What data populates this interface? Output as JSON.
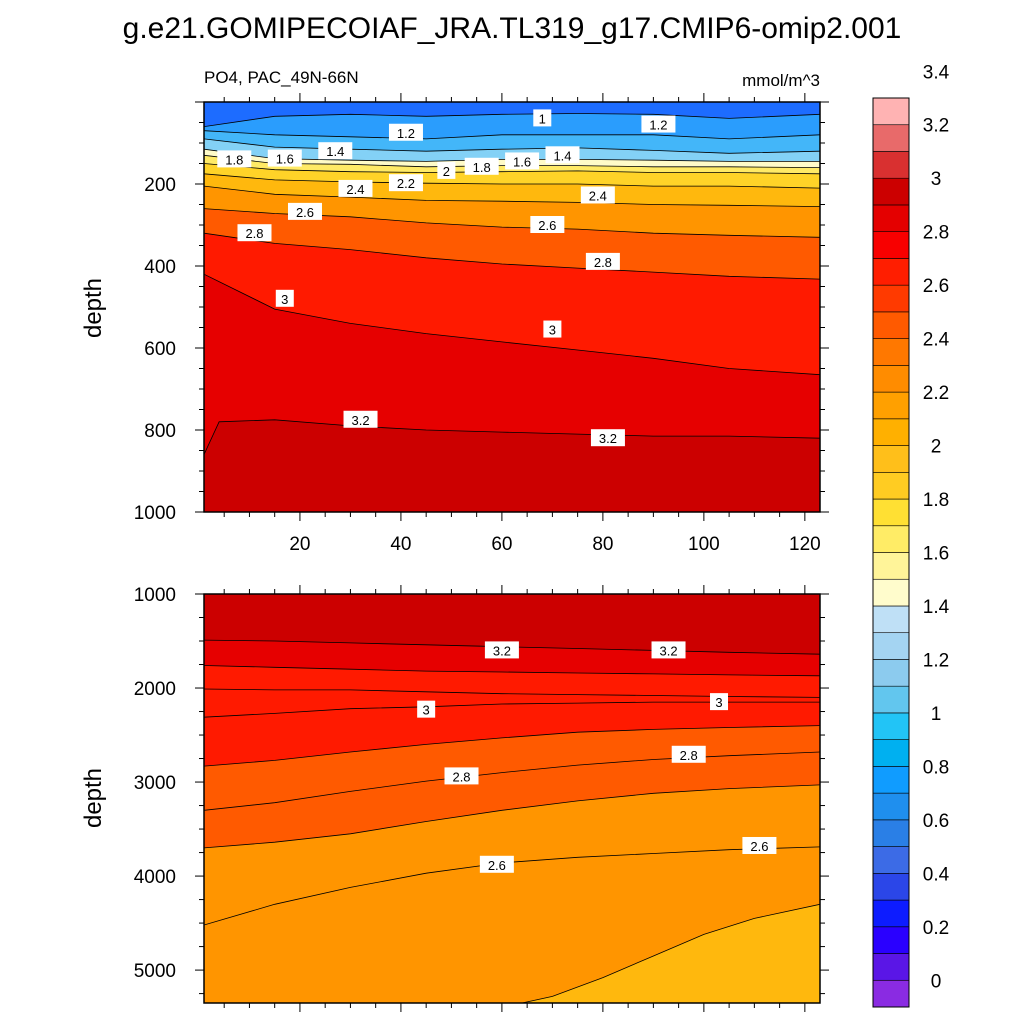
{
  "figure": {
    "title": "g.e21.GOMIPECOIAF_JRA.TL319_g17.CMIP6-omip2.001",
    "subtitle_left": "PO4, PAC_49N-66N",
    "subtitle_right": "mmol/m^3"
  },
  "chart_data": [
    {
      "type": "heatmap",
      "panel": "upper",
      "ylabel": "depth",
      "xlim": [
        1,
        123
      ],
      "ylim": [
        1000,
        0
      ],
      "x_ticks": [
        "20",
        "40",
        "60",
        "80",
        "100",
        "120"
      ],
      "y_ticks": [
        "200",
        "400",
        "600",
        "800",
        "1000"
      ],
      "contour_step": 0.2,
      "contour_lines": [
        {
          "level": 1.0,
          "x": [
            1,
            15,
            30,
            45,
            60,
            75,
            90,
            105,
            123
          ],
          "depth": [
            60,
            35,
            30,
            35,
            30,
            28,
            30,
            40,
            30
          ]
        },
        {
          "level": 1.2,
          "x": [
            1,
            15,
            30,
            45,
            60,
            75,
            90,
            105,
            123
          ],
          "depth": [
            70,
            80,
            85,
            90,
            80,
            80,
            80,
            90,
            80
          ]
        },
        {
          "level": 1.4,
          "x": [
            1,
            15,
            30,
            45,
            60,
            75,
            90,
            105,
            123
          ],
          "depth": [
            90,
            110,
            115,
            120,
            115,
            112,
            118,
            125,
            120
          ]
        },
        {
          "level": 1.6,
          "x": [
            1,
            15,
            30,
            45,
            60,
            75,
            90,
            105,
            123
          ],
          "depth": [
            115,
            138,
            142,
            145,
            140,
            140,
            142,
            145,
            145
          ]
        },
        {
          "level": 1.8,
          "x": [
            1,
            15,
            30,
            45,
            60,
            75,
            90,
            105,
            123
          ],
          "depth": [
            130,
            150,
            152,
            158,
            155,
            155,
            158,
            158,
            160
          ]
        },
        {
          "level": 2.0,
          "x": [
            1,
            15,
            30,
            45,
            60,
            75,
            90,
            105,
            123
          ],
          "depth": [
            150,
            165,
            170,
            172,
            170,
            168,
            172,
            172,
            175
          ]
        },
        {
          "level": 2.2,
          "x": [
            1,
            15,
            30,
            45,
            60,
            75,
            90,
            105,
            123
          ],
          "depth": [
            175,
            190,
            195,
            198,
            200,
            200,
            205,
            205,
            210
          ]
        },
        {
          "level": 2.4,
          "x": [
            1,
            15,
            30,
            45,
            60,
            75,
            90,
            105,
            123
          ],
          "depth": [
            205,
            225,
            232,
            240,
            242,
            245,
            250,
            252,
            255
          ]
        },
        {
          "level": 2.6,
          "x": [
            1,
            15,
            30,
            45,
            60,
            75,
            90,
            105,
            123
          ],
          "depth": [
            260,
            272,
            280,
            295,
            305,
            310,
            320,
            325,
            330
          ]
        },
        {
          "level": 2.8,
          "x": [
            1,
            15,
            30,
            45,
            60,
            75,
            90,
            105,
            123
          ],
          "depth": [
            320,
            345,
            360,
            380,
            395,
            405,
            415,
            425,
            432
          ]
        },
        {
          "level": 3.0,
          "x": [
            1,
            15,
            30,
            45,
            60,
            75,
            90,
            105,
            123
          ],
          "depth": [
            420,
            505,
            540,
            565,
            585,
            605,
            625,
            650,
            665
          ]
        },
        {
          "level": 3.2,
          "x": [
            1,
            4,
            15,
            30,
            45,
            60,
            75,
            90,
            105,
            123
          ],
          "depth": [
            860,
            780,
            775,
            790,
            800,
            805,
            810,
            815,
            815,
            820
          ]
        }
      ],
      "contour_labels": [
        {
          "text": "1",
          "x": 68,
          "depth": 40
        },
        {
          "text": "1.2",
          "x": 41,
          "depth": 75
        },
        {
          "text": "1.2",
          "x": 91,
          "depth": 55
        },
        {
          "text": "1.4",
          "x": 27,
          "depth": 120
        },
        {
          "text": "1.4",
          "x": 72,
          "depth": 130
        },
        {
          "text": "1.6",
          "x": 17,
          "depth": 138
        },
        {
          "text": "1.6",
          "x": 64,
          "depth": 145
        },
        {
          "text": "1.8",
          "x": 7,
          "depth": 140
        },
        {
          "text": "1.8",
          "x": 56,
          "depth": 158
        },
        {
          "text": "2",
          "x": 49,
          "depth": 168
        },
        {
          "text": "2.2",
          "x": 41,
          "depth": 198
        },
        {
          "text": "2.4",
          "x": 31,
          "depth": 212
        },
        {
          "text": "2.4",
          "x": 79,
          "depth": 228
        },
        {
          "text": "2.6",
          "x": 21,
          "depth": 268
        },
        {
          "text": "2.6",
          "x": 69,
          "depth": 300
        },
        {
          "text": "2.8",
          "x": 11,
          "depth": 320
        },
        {
          "text": "2.8",
          "x": 80,
          "depth": 390
        },
        {
          "text": "3",
          "x": 17,
          "depth": 480
        },
        {
          "text": "3",
          "x": 70,
          "depth": 555
        },
        {
          "text": "3.2",
          "x": 32,
          "depth": 775
        },
        {
          "text": "3.2",
          "x": 81,
          "depth": 820
        }
      ]
    },
    {
      "type": "heatmap",
      "panel": "lower",
      "ylabel": "depth",
      "xlim": [
        1,
        123
      ],
      "ylim": [
        5350,
        1000
      ],
      "x_ticks": [],
      "y_ticks": [
        "1000",
        "2000",
        "3000",
        "4000",
        "5000"
      ],
      "contour_step": 0.2,
      "contour_lines": [
        {
          "level": 3.2,
          "x": [
            1,
            15,
            30,
            45,
            60,
            75,
            90,
            105,
            123
          ],
          "depth": [
            1490,
            1500,
            1520,
            1540,
            1560,
            1580,
            1600,
            1620,
            1640
          ]
        },
        {
          "level": 3.0,
          "x": [
            1,
            15,
            30,
            45,
            60,
            75,
            90,
            105,
            123
          ],
          "depth": [
            1760,
            1780,
            1800,
            1820,
            1830,
            1840,
            1850,
            1860,
            1870
          ]
        },
        {
          "level": 3.0,
          "x": [
            1,
            15,
            30,
            45,
            60,
            75,
            90,
            105,
            123
          ],
          "depth": [
            2010,
            2020,
            2020,
            2040,
            2060,
            2070,
            2080,
            2090,
            2100
          ]
        },
        {
          "level": 3.0,
          "x": [
            1,
            15,
            30,
            45,
            60,
            75,
            90,
            105,
            123
          ],
          "depth": [
            2310,
            2270,
            2220,
            2200,
            2170,
            2160,
            2150,
            2150,
            2150
          ]
        },
        {
          "level": 2.8,
          "x": [
            1,
            15,
            30,
            45,
            60,
            75,
            90,
            105,
            123
          ],
          "depth": [
            2830,
            2770,
            2680,
            2600,
            2530,
            2470,
            2440,
            2420,
            2400
          ]
        },
        {
          "level": 2.8,
          "x": [
            1,
            15,
            30,
            45,
            60,
            75,
            90,
            105,
            123
          ],
          "depth": [
            3300,
            3220,
            3100,
            2990,
            2900,
            2820,
            2760,
            2720,
            2680
          ]
        },
        {
          "level": 2.6,
          "x": [
            1,
            15,
            30,
            45,
            60,
            75,
            90,
            105,
            123
          ],
          "depth": [
            3700,
            3640,
            3550,
            3420,
            3300,
            3200,
            3120,
            3070,
            3030
          ]
        },
        {
          "level": 2.6,
          "x": [
            1,
            15,
            30,
            45,
            60,
            75,
            90,
            105,
            123
          ],
          "depth": [
            4520,
            4300,
            4120,
            3970,
            3860,
            3800,
            3760,
            3720,
            3690
          ]
        },
        {
          "level": 2.4,
          "x": [
            64,
            70,
            80,
            90,
            100,
            110,
            123
          ],
          "depth": [
            5350,
            5280,
            5080,
            4850,
            4620,
            4450,
            4300
          ]
        }
      ],
      "contour_labels": [
        {
          "text": "3.2",
          "x": 60,
          "depth": 1600
        },
        {
          "text": "3.2",
          "x": 93,
          "depth": 1600
        },
        {
          "text": "3",
          "x": 45,
          "depth": 2230
        },
        {
          "text": "3",
          "x": 103,
          "depth": 2150
        },
        {
          "text": "2.8",
          "x": 52,
          "depth": 2940
        },
        {
          "text": "2.8",
          "x": 97,
          "depth": 2710
        },
        {
          "text": "2.6",
          "x": 59,
          "depth": 3880
        },
        {
          "text": "2.6",
          "x": 111,
          "depth": 3680
        }
      ]
    }
  ],
  "colorbar": {
    "labels": [
      "0",
      "0.2",
      "0.4",
      "0.6",
      "0.8",
      "1",
      "1.2",
      "1.4",
      "1.6",
      "1.8",
      "2",
      "2.2",
      "2.4",
      "2.6",
      "2.8",
      "3",
      "3.2",
      "3.4"
    ],
    "colors": [
      "#8a2be2",
      "#5a16e6",
      "#2a00ff",
      "#0d1cff",
      "#2b46e8",
      "#3c6be6",
      "#2a7fe6",
      "#1f8fee",
      "#109cff",
      "#00b0f0",
      "#22c4f6",
      "#62c6ee",
      "#8ccbee",
      "#a4d4f2",
      "#bfe0f6",
      "#fffccc",
      "#fff499",
      "#ffec66",
      "#ffe033",
      "#ffcc22",
      "#ffbf1a",
      "#ffb000",
      "#ffa000",
      "#ff8c00",
      "#ff7800",
      "#ff5a00",
      "#ff3a00",
      "#ff1e00",
      "#f80000",
      "#e40000",
      "#cc0000",
      "#d93030",
      "#e86a6a",
      "#ffb3b3"
    ]
  }
}
